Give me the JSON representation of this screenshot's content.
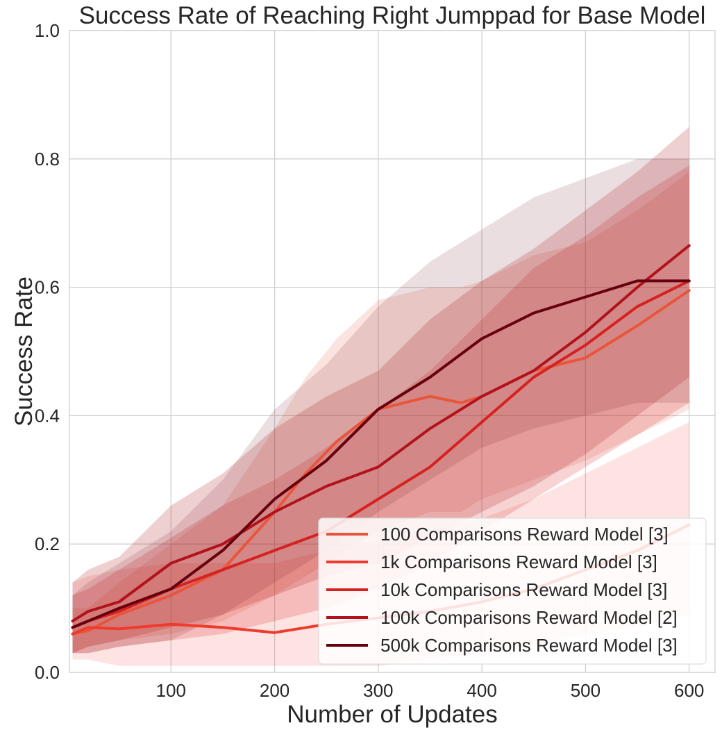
{
  "chart_data": {
    "type": "line",
    "title": "Success Rate of Reaching Right Jumppad for Base Model",
    "xlabel": "Number of Updates",
    "ylabel": "Success Rate",
    "xlim": [
      2,
      625
    ],
    "ylim": [
      0.0,
      1.0
    ],
    "xticks": [
      100,
      200,
      300,
      400,
      500,
      600
    ],
    "yticks": [
      0.0,
      0.2,
      0.4,
      0.6,
      0.8,
      1.0
    ],
    "xtick_labels": [
      "100",
      "200",
      "300",
      "400",
      "500",
      "600"
    ],
    "ytick_labels": [
      "0.0",
      "0.2",
      "0.4",
      "0.6",
      "0.8",
      "1.0"
    ],
    "grid": true,
    "legend_position": "lower-right",
    "series": [
      {
        "name": "100 Comparisons Reward Model [3]",
        "color": "#e8553a",
        "x": [
          5,
          20,
          50,
          100,
          150,
          200,
          230,
          260,
          300,
          350,
          380,
          400,
          450,
          500,
          550,
          600
        ],
        "y": [
          0.06,
          0.065,
          0.09,
          0.12,
          0.16,
          0.25,
          0.31,
          0.36,
          0.41,
          0.43,
          0.42,
          0.43,
          0.47,
          0.49,
          0.54,
          0.595
        ],
        "lower": [
          0.03,
          0.04,
          0.05,
          0.06,
          0.08,
          0.12,
          0.15,
          0.18,
          0.22,
          0.25,
          0.25,
          0.27,
          0.3,
          0.33,
          0.37,
          0.41
        ],
        "upper": [
          0.1,
          0.1,
          0.14,
          0.2,
          0.26,
          0.38,
          0.46,
          0.52,
          0.58,
          0.6,
          0.6,
          0.61,
          0.65,
          0.67,
          0.72,
          0.78
        ]
      },
      {
        "name": "1k Comparisons Reward Model [3]",
        "color": "#ee3b2c",
        "x": [
          5,
          20,
          50,
          100,
          150,
          200,
          250,
          300,
          350,
          400,
          450,
          500,
          550,
          600
        ],
        "y": [
          0.06,
          0.07,
          0.068,
          0.075,
          0.07,
          0.062,
          0.075,
          0.085,
          0.095,
          0.11,
          0.13,
          0.16,
          0.19,
          0.23
        ],
        "lower": [
          0.02,
          0.02,
          0.01,
          0.01,
          0.01,
          0.01,
          0.01,
          0.01,
          0.02,
          0.03,
          0.04,
          0.06,
          0.07,
          0.09
        ],
        "upper": [
          0.14,
          0.15,
          0.16,
          0.17,
          0.17,
          0.17,
          0.19,
          0.2,
          0.22,
          0.24,
          0.27,
          0.31,
          0.35,
          0.39
        ]
      },
      {
        "name": "10k Comparisons Reward Model [3]",
        "color": "#d52221",
        "x": [
          5,
          20,
          50,
          100,
          150,
          200,
          250,
          300,
          350,
          400,
          450,
          500,
          550,
          600
        ],
        "y": [
          0.07,
          0.08,
          0.095,
          0.13,
          0.16,
          0.19,
          0.22,
          0.27,
          0.32,
          0.39,
          0.46,
          0.51,
          0.57,
          0.61
        ],
        "lower": [
          0.03,
          0.03,
          0.04,
          0.05,
          0.06,
          0.08,
          0.1,
          0.13,
          0.17,
          0.22,
          0.27,
          0.32,
          0.37,
          0.42
        ],
        "upper": [
          0.12,
          0.13,
          0.16,
          0.21,
          0.26,
          0.3,
          0.35,
          0.41,
          0.47,
          0.55,
          0.63,
          0.68,
          0.74,
          0.79
        ]
      },
      {
        "name": "100k Comparisons Reward Model [2]",
        "color": "#b1121b",
        "x": [
          5,
          20,
          50,
          100,
          150,
          200,
          250,
          300,
          350,
          400,
          450,
          500,
          550,
          600
        ],
        "y": [
          0.08,
          0.095,
          0.11,
          0.17,
          0.2,
          0.25,
          0.29,
          0.32,
          0.38,
          0.43,
          0.47,
          0.53,
          0.6,
          0.665
        ],
        "lower": [
          0.03,
          0.04,
          0.05,
          0.07,
          0.09,
          0.12,
          0.15,
          0.17,
          0.21,
          0.25,
          0.29,
          0.34,
          0.4,
          0.46
        ],
        "upper": [
          0.14,
          0.16,
          0.18,
          0.26,
          0.31,
          0.38,
          0.43,
          0.47,
          0.55,
          0.61,
          0.66,
          0.72,
          0.78,
          0.85
        ]
      },
      {
        "name": "500k Comparisons Reward Model [3]",
        "color": "#67000d",
        "x": [
          5,
          20,
          50,
          100,
          150,
          200,
          250,
          300,
          350,
          400,
          450,
          500,
          550,
          600
        ],
        "y": [
          0.07,
          0.08,
          0.1,
          0.13,
          0.19,
          0.27,
          0.33,
          0.41,
          0.46,
          0.52,
          0.56,
          0.585,
          0.61,
          0.61
        ],
        "lower": [
          0.03,
          0.03,
          0.04,
          0.05,
          0.09,
          0.14,
          0.19,
          0.25,
          0.3,
          0.35,
          0.38,
          0.4,
          0.42,
          0.42
        ],
        "upper": [
          0.12,
          0.14,
          0.17,
          0.22,
          0.3,
          0.41,
          0.48,
          0.57,
          0.64,
          0.69,
          0.74,
          0.77,
          0.8,
          0.8
        ]
      }
    ]
  }
}
